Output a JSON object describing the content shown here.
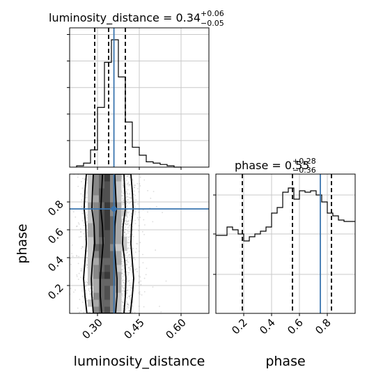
{
  "chart_data": {
    "type": "corner",
    "parameters": [
      {
        "name": "luminosity_distance",
        "axis_label": "luminosity_distance",
        "title": {
          "prefix": "luminosity_distance = 0.34",
          "plus": "+0.06",
          "minus": "−0.05"
        },
        "median": 0.34,
        "quantile_lines": [
          0.29,
          0.34,
          0.4
        ],
        "truth": 0.359,
        "range": [
          0.2,
          0.7
        ],
        "ticks": [
          0.3,
          0.45,
          0.6
        ],
        "tick_labels": [
          "0.30",
          "0.45",
          "0.60"
        ],
        "histogram": {
          "bin_edges": [
            0.225,
            0.25,
            0.275,
            0.3,
            0.325,
            0.35,
            0.375,
            0.4,
            0.425,
            0.45,
            0.475,
            0.5,
            0.525,
            0.55,
            0.575,
            0.6
          ],
          "density": [
            0.01,
            0.03,
            0.13,
            0.45,
            0.79,
            0.96,
            0.68,
            0.34,
            0.15,
            0.09,
            0.04,
            0.03,
            0.02,
            0.01,
            0.0
          ]
        }
      },
      {
        "name": "phase",
        "axis_label": "phase",
        "title": {
          "prefix": "phase = 0.55",
          "plus": "+0.28",
          "minus": "−0.36"
        },
        "median": 0.55,
        "quantile_lines": [
          0.19,
          0.55,
          0.83
        ],
        "truth": 0.75,
        "range": [
          0.0,
          1.0
        ],
        "ticks": [
          0.2,
          0.4,
          0.6,
          0.8
        ],
        "tick_labels": [
          "0.2",
          "0.4",
          "0.6",
          "0.8"
        ],
        "histogram": {
          "bin_edges": [
            0.0,
            0.04,
            0.08,
            0.12,
            0.16,
            0.2,
            0.24,
            0.28,
            0.32,
            0.36,
            0.4,
            0.44,
            0.48,
            0.52,
            0.56,
            0.6,
            0.64,
            0.68,
            0.72,
            0.76,
            0.8,
            0.84,
            0.88,
            0.92,
            0.96,
            1.0
          ],
          "density": [
            0.56,
            0.56,
            0.62,
            0.6,
            0.57,
            0.52,
            0.55,
            0.57,
            0.59,
            0.62,
            0.72,
            0.76,
            0.87,
            0.9,
            0.82,
            0.88,
            0.87,
            0.88,
            0.85,
            0.8,
            0.72,
            0.7,
            0.67,
            0.66,
            0.66
          ]
        }
      }
    ],
    "joint": {
      "x": "luminosity_distance",
      "y": "phase",
      "truth": [
        0.359,
        0.75
      ],
      "median": [
        0.34,
        0.55
      ],
      "contours": [
        {
          "x_half_widths": [
            0.025,
            0.03,
            0.03,
            0.025,
            0.02,
            0.022,
            0.028,
            0.025,
            0.022
          ]
        },
        {
          "x_half_widths": [
            0.055,
            0.06,
            0.062,
            0.058,
            0.05,
            0.052,
            0.06,
            0.058,
            0.055
          ]
        },
        {
          "x_half_widths": [
            0.078,
            0.085,
            0.09,
            0.085,
            0.08,
            0.082,
            0.088,
            0.085,
            0.08
          ]
        }
      ]
    },
    "grid": true,
    "colors": {
      "truth": "#3a75af",
      "hist": "#000000",
      "quantile": "#000000",
      "grid": "#c8c8c8",
      "points": "#9a9a9a"
    }
  }
}
